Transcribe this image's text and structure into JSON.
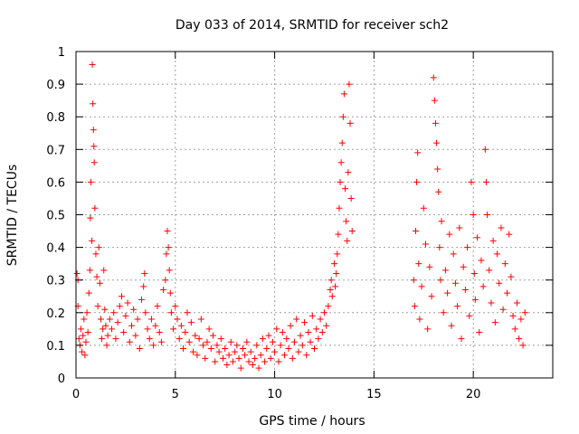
{
  "chart_data": {
    "type": "scatter",
    "title": "Day 033 of 2014, SRMTID for receiver sch2",
    "xlabel": "GPS time / hours",
    "ylabel": "SRMTID / TECUs",
    "xlim": [
      0,
      24
    ],
    "ylim": [
      0,
      1
    ],
    "xticks": [
      0,
      5,
      10,
      15,
      20
    ],
    "yticks": [
      0,
      0.1,
      0.2,
      0.3,
      0.4,
      0.5,
      0.6,
      0.7,
      0.8,
      0.9,
      1
    ],
    "grid": true,
    "marker": "+",
    "color": "#ff0000",
    "series": [
      {
        "name": "sch2",
        "points": [
          [
            0.05,
            0.32
          ],
          [
            0.1,
            0.3
          ],
          [
            0.1,
            0.22
          ],
          [
            0.15,
            0.12
          ],
          [
            0.2,
            0.1
          ],
          [
            0.25,
            0.15
          ],
          [
            0.3,
            0.08
          ],
          [
            0.35,
            0.13
          ],
          [
            0.4,
            0.18
          ],
          [
            0.45,
            0.07
          ],
          [
            0.5,
            0.11
          ],
          [
            0.55,
            0.2
          ],
          [
            0.6,
            0.14
          ],
          [
            0.65,
            0.26
          ],
          [
            0.7,
            0.33
          ],
          [
            0.72,
            0.49
          ],
          [
            0.75,
            0.6
          ],
          [
            0.8,
            0.42
          ],
          [
            0.82,
            0.96
          ],
          [
            0.85,
            0.84
          ],
          [
            0.88,
            0.76
          ],
          [
            0.9,
            0.71
          ],
          [
            0.92,
            0.66
          ],
          [
            0.95,
            0.52
          ],
          [
            1.0,
            0.38
          ],
          [
            1.05,
            0.31
          ],
          [
            1.1,
            0.22
          ],
          [
            1.15,
            0.4
          ],
          [
            1.2,
            0.29
          ],
          [
            1.25,
            0.18
          ],
          [
            1.3,
            0.12
          ],
          [
            1.35,
            0.15
          ],
          [
            1.4,
            0.33
          ],
          [
            1.45,
            0.21
          ],
          [
            1.5,
            0.16
          ],
          [
            1.55,
            0.1
          ],
          [
            1.6,
            0.13
          ],
          [
            1.7,
            0.18
          ],
          [
            1.8,
            0.15
          ],
          [
            1.9,
            0.2
          ],
          [
            2.0,
            0.12
          ],
          [
            2.1,
            0.17
          ],
          [
            2.2,
            0.22
          ],
          [
            2.3,
            0.25
          ],
          [
            2.4,
            0.14
          ],
          [
            2.5,
            0.19
          ],
          [
            2.6,
            0.23
          ],
          [
            2.7,
            0.11
          ],
          [
            2.8,
            0.16
          ],
          [
            2.9,
            0.21
          ],
          [
            3.0,
            0.13
          ],
          [
            3.1,
            0.18
          ],
          [
            3.2,
            0.09
          ],
          [
            3.3,
            0.24
          ],
          [
            3.4,
            0.28
          ],
          [
            3.45,
            0.32
          ],
          [
            3.5,
            0.2
          ],
          [
            3.6,
            0.15
          ],
          [
            3.7,
            0.12
          ],
          [
            3.8,
            0.18
          ],
          [
            3.9,
            0.1
          ],
          [
            4.0,
            0.16
          ],
          [
            4.1,
            0.22
          ],
          [
            4.2,
            0.14
          ],
          [
            4.3,
            0.11
          ],
          [
            4.4,
            0.27
          ],
          [
            4.5,
            0.3
          ],
          [
            4.55,
            0.38
          ],
          [
            4.6,
            0.45
          ],
          [
            4.65,
            0.4
          ],
          [
            4.7,
            0.33
          ],
          [
            4.75,
            0.26
          ],
          [
            4.8,
            0.2
          ],
          [
            4.9,
            0.15
          ],
          [
            5.0,
            0.22
          ],
          [
            5.1,
            0.18
          ],
          [
            5.2,
            0.12
          ],
          [
            5.3,
            0.16
          ],
          [
            5.4,
            0.09
          ],
          [
            5.5,
            0.14
          ],
          [
            5.6,
            0.2
          ],
          [
            5.7,
            0.11
          ],
          [
            5.8,
            0.17
          ],
          [
            5.9,
            0.08
          ],
          [
            6.0,
            0.13
          ],
          [
            6.1,
            0.07
          ],
          [
            6.2,
            0.12
          ],
          [
            6.3,
            0.18
          ],
          [
            6.4,
            0.1
          ],
          [
            6.5,
            0.06
          ],
          [
            6.6,
            0.11
          ],
          [
            6.7,
            0.15
          ],
          [
            6.8,
            0.09
          ],
          [
            6.9,
            0.13
          ],
          [
            7.0,
            0.05
          ],
          [
            7.1,
            0.1
          ],
          [
            7.2,
            0.08
          ],
          [
            7.3,
            0.12
          ],
          [
            7.4,
            0.06
          ],
          [
            7.5,
            0.09
          ],
          [
            7.6,
            0.04
          ],
          [
            7.7,
            0.07
          ],
          [
            7.8,
            0.11
          ],
          [
            7.9,
            0.05
          ],
          [
            8.0,
            0.08
          ],
          [
            8.1,
            0.1
          ],
          [
            8.2,
            0.06
          ],
          [
            8.3,
            0.03
          ],
          [
            8.4,
            0.09
          ],
          [
            8.5,
            0.07
          ],
          [
            8.6,
            0.11
          ],
          [
            8.7,
            0.05
          ],
          [
            8.8,
            0.08
          ],
          [
            8.9,
            0.04
          ],
          [
            9.0,
            0.06
          ],
          [
            9.1,
            0.1
          ],
          [
            9.2,
            0.03
          ],
          [
            9.3,
            0.07
          ],
          [
            9.4,
            0.12
          ],
          [
            9.5,
            0.05
          ],
          [
            9.6,
            0.09
          ],
          [
            9.7,
            0.13
          ],
          [
            9.8,
            0.06
          ],
          [
            9.9,
            0.11
          ],
          [
            10.0,
            0.08
          ],
          [
            10.1,
            0.15
          ],
          [
            10.2,
            0.05
          ],
          [
            10.3,
            0.1
          ],
          [
            10.4,
            0.14
          ],
          [
            10.5,
            0.07
          ],
          [
            10.6,
            0.12
          ],
          [
            10.7,
            0.09
          ],
          [
            10.8,
            0.16
          ],
          [
            10.9,
            0.06
          ],
          [
            11.0,
            0.11
          ],
          [
            11.1,
            0.18
          ],
          [
            11.2,
            0.08
          ],
          [
            11.3,
            0.13
          ],
          [
            11.4,
            0.1
          ],
          [
            11.5,
            0.17
          ],
          [
            11.6,
            0.07
          ],
          [
            11.7,
            0.14
          ],
          [
            11.8,
            0.11
          ],
          [
            11.9,
            0.19
          ],
          [
            12.0,
            0.09
          ],
          [
            12.1,
            0.15
          ],
          [
            12.2,
            0.12
          ],
          [
            12.3,
            0.18
          ],
          [
            12.4,
            0.14
          ],
          [
            12.5,
            0.2
          ],
          [
            12.6,
            0.16
          ],
          [
            12.7,
            0.22
          ],
          [
            12.8,
            0.27
          ],
          [
            12.85,
            0.3
          ],
          [
            12.9,
            0.25
          ],
          [
            13.0,
            0.35
          ],
          [
            13.05,
            0.28
          ],
          [
            13.1,
            0.32
          ],
          [
            13.15,
            0.38
          ],
          [
            13.2,
            0.44
          ],
          [
            13.25,
            0.52
          ],
          [
            13.3,
            0.6
          ],
          [
            13.35,
            0.66
          ],
          [
            13.4,
            0.72
          ],
          [
            13.45,
            0.8
          ],
          [
            13.5,
            0.87
          ],
          [
            13.55,
            0.58
          ],
          [
            13.6,
            0.48
          ],
          [
            13.65,
            0.42
          ],
          [
            13.7,
            0.63
          ],
          [
            13.75,
            0.9
          ],
          [
            13.8,
            0.78
          ],
          [
            13.85,
            0.55
          ],
          [
            13.9,
            0.45
          ],
          [
            17.0,
            0.3
          ],
          [
            17.05,
            0.22
          ],
          [
            17.1,
            0.45
          ],
          [
            17.15,
            0.6
          ],
          [
            17.2,
            0.69
          ],
          [
            17.25,
            0.35
          ],
          [
            17.3,
            0.18
          ],
          [
            17.4,
            0.28
          ],
          [
            17.5,
            0.52
          ],
          [
            17.6,
            0.41
          ],
          [
            17.7,
            0.15
          ],
          [
            17.8,
            0.34
          ],
          [
            17.9,
            0.25
          ],
          [
            18.0,
            0.92
          ],
          [
            18.05,
            0.85
          ],
          [
            18.1,
            0.78
          ],
          [
            18.15,
            0.72
          ],
          [
            18.2,
            0.64
          ],
          [
            18.25,
            0.57
          ],
          [
            18.3,
            0.4
          ],
          [
            18.35,
            0.3
          ],
          [
            18.4,
            0.48
          ],
          [
            18.5,
            0.2
          ],
          [
            18.6,
            0.33
          ],
          [
            18.7,
            0.26
          ],
          [
            18.8,
            0.44
          ],
          [
            18.9,
            0.16
          ],
          [
            19.0,
            0.38
          ],
          [
            19.1,
            0.29
          ],
          [
            19.2,
            0.22
          ],
          [
            19.3,
            0.46
          ],
          [
            19.4,
            0.12
          ],
          [
            19.5,
            0.34
          ],
          [
            19.6,
            0.27
          ],
          [
            19.7,
            0.4
          ],
          [
            19.8,
            0.19
          ],
          [
            19.9,
            0.6
          ],
          [
            20.0,
            0.5
          ],
          [
            20.05,
            0.32
          ],
          [
            20.1,
            0.24
          ],
          [
            20.2,
            0.43
          ],
          [
            20.3,
            0.14
          ],
          [
            20.4,
            0.36
          ],
          [
            20.5,
            0.28
          ],
          [
            20.6,
            0.7
          ],
          [
            20.65,
            0.6
          ],
          [
            20.7,
            0.5
          ],
          [
            20.8,
            0.33
          ],
          [
            20.9,
            0.23
          ],
          [
            21.0,
            0.42
          ],
          [
            21.1,
            0.17
          ],
          [
            21.2,
            0.38
          ],
          [
            21.3,
            0.29
          ],
          [
            21.4,
            0.46
          ],
          [
            21.5,
            0.21
          ],
          [
            21.6,
            0.35
          ],
          [
            21.7,
            0.26
          ],
          [
            21.8,
            0.44
          ],
          [
            21.9,
            0.31
          ],
          [
            22.0,
            0.19
          ],
          [
            22.1,
            0.15
          ],
          [
            22.2,
            0.23
          ],
          [
            22.3,
            0.12
          ],
          [
            22.4,
            0.18
          ],
          [
            22.5,
            0.1
          ],
          [
            22.6,
            0.2
          ]
        ]
      }
    ]
  }
}
